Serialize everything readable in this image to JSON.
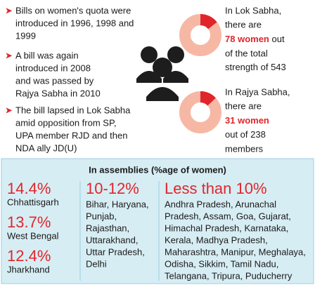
{
  "bullets": [
    [
      "Bills on women's quota were",
      "introduced in 1996, 1998 and",
      "1999"
    ],
    [
      "A bill was again",
      "introduced in 2008",
      "and was passed by",
      "Rajya Sabha in 2010"
    ],
    [
      "The bill lapsed in Lok Sabha",
      "amid opposition from SP,",
      "UPA member RJD and then",
      "NDA ally JD(U)"
    ]
  ],
  "houses": [
    {
      "intro_lines": [
        "In Lok Sabha,",
        "there are"
      ],
      "women": 78,
      "women_word": "women",
      "after_lines": [
        "out",
        "of the total",
        "strength of"
      ],
      "total": 543
    },
    {
      "intro_lines": [
        "In Rajya Sabha,",
        "there are"
      ],
      "women": 31,
      "women_word": "women",
      "before_total": "out of",
      "total": 238,
      "after_total": "members"
    }
  ],
  "assemblies": {
    "title": "In assemblies (%age of women)",
    "top": [
      {
        "share": "14.4%",
        "state": "Chhattisgarh"
      },
      {
        "share": "13.7%",
        "state": "West Bengal"
      },
      {
        "share": "12.4%",
        "state": "Jharkhand"
      }
    ],
    "middle": {
      "share": "10-12%",
      "lines": [
        "Bihar, Haryana,",
        "Punjab,",
        "Rajasthan,",
        "Uttarakhand,",
        "Uttar Pradesh,",
        "Delhi"
      ]
    },
    "low": {
      "share": "Less than 10%",
      "lines": [
        "Andhra Pradesh, Arunachal",
        "Pradesh, Assam, Goa, Gujarat,",
        "Himachal Pradesh, Karnataka,",
        "Kerala, Madhya Pradesh,",
        "Maharashtra, Manipur, Meghalaya,",
        "Odisha, Sikkim, Tamil Nadu,",
        "Telangana, Tripura, Puducherry"
      ]
    }
  }
}
